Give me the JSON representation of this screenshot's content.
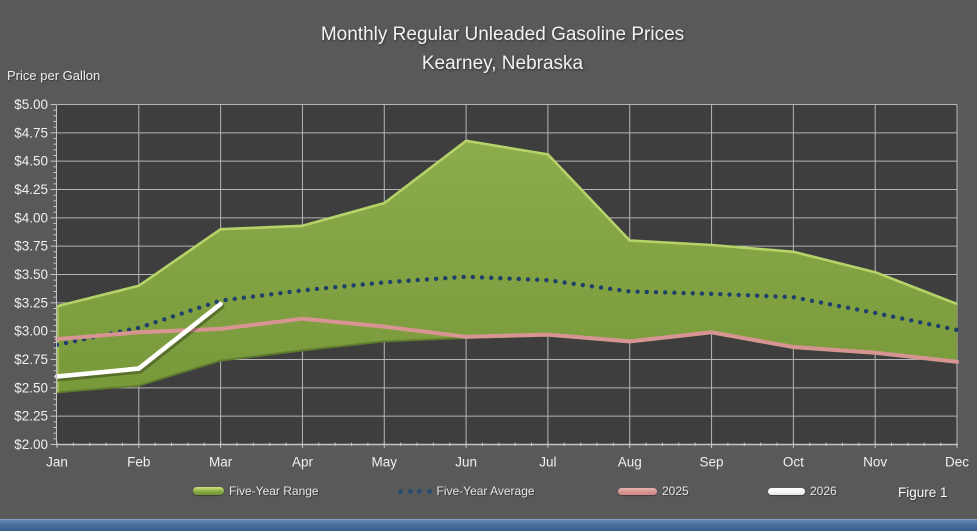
{
  "title": {
    "line1": "Monthly Regular Unleaded Gasoline Prices",
    "line2": "Kearney, Nebraska"
  },
  "y_axis_title": "Price per Gallon",
  "figure_label": "Figure 1",
  "legend": {
    "items": [
      {
        "label": "Five-Year Range",
        "swatch": "band"
      },
      {
        "label": "Five-Year Average",
        "swatch": "dots"
      },
      {
        "label": "2025",
        "swatch": "line-pink"
      },
      {
        "label": "2026",
        "swatch": "line-white"
      }
    ]
  },
  "colors": {
    "canvas_bg": "#595959",
    "plot_bg": "#3E3E3E",
    "gridline": "#C9C9C9",
    "axis_line": "#C4C4C4",
    "axis_text": "#F0F0F0",
    "band_fill_top": "#8DAC4C",
    "band_fill_bottom": "#78993A",
    "band_edge_light": "#B5D368",
    "band_edge_dark": "#617D2E",
    "average_dot": "#20406B",
    "line_2025": "#D89492",
    "line_2026": "#FFFFFF",
    "bottom_bar": "#4A6D9E"
  },
  "chart_data": {
    "type": "area",
    "title": "Monthly Regular Unleaded Gasoline Prices — Kearney, Nebraska",
    "xlabel": "",
    "ylabel": "Price per Gallon",
    "ylim": [
      2.0,
      5.0
    ],
    "ytick_step": 0.25,
    "ytick_prefix": "$",
    "grid": true,
    "legend_position": "bottom",
    "categories": [
      "Jan",
      "Feb",
      "Mar",
      "Apr",
      "May",
      "Jun",
      "Jul",
      "Aug",
      "Sep",
      "Oct",
      "Nov",
      "Dec"
    ],
    "series": [
      {
        "name": "Five-Year Range",
        "kind": "band",
        "max": [
          3.22,
          3.4,
          3.9,
          3.93,
          4.13,
          4.68,
          4.56,
          3.8,
          3.76,
          3.7,
          3.52,
          3.24
        ],
        "min": [
          2.46,
          2.52,
          2.74,
          2.83,
          2.91,
          2.94,
          2.96,
          2.9,
          2.98,
          2.85,
          2.8,
          2.72
        ]
      },
      {
        "name": "Five-Year Average",
        "kind": "dotted_line",
        "values": [
          2.88,
          3.03,
          3.27,
          3.36,
          3.43,
          3.48,
          3.45,
          3.35,
          3.33,
          3.3,
          3.16,
          3.01
        ]
      },
      {
        "name": "2025",
        "kind": "line",
        "values": [
          2.93,
          2.99,
          3.02,
          3.11,
          3.04,
          2.95,
          2.97,
          2.91,
          2.99,
          2.86,
          2.81,
          2.73
        ]
      },
      {
        "name": "2026",
        "kind": "line",
        "values": [
          2.6,
          2.67,
          3.24,
          null,
          null,
          null,
          null,
          null,
          null,
          null,
          null,
          null
        ]
      }
    ]
  }
}
